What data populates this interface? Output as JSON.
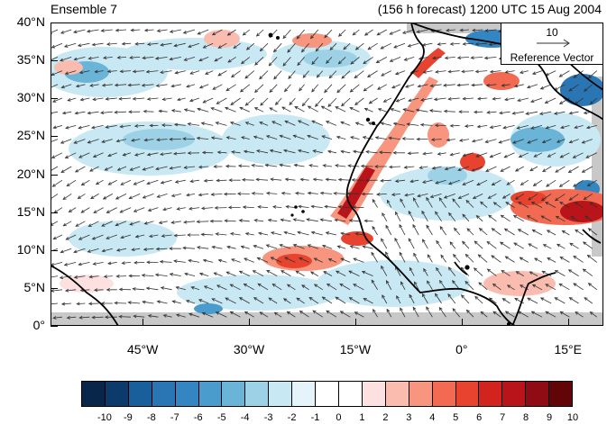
{
  "header": {
    "left_title": "Ensemble 7",
    "right_title": "(156 h forecast) 1200 UTC 15 Aug 2004"
  },
  "map": {
    "lat_labels": [
      "40°N",
      "35°N",
      "30°N",
      "25°N",
      "20°N",
      "15°N",
      "10°N",
      "5°N",
      "0°"
    ],
    "lat_values": [
      40,
      35,
      30,
      25,
      20,
      15,
      10,
      5,
      0
    ],
    "lon_labels": [
      "45°W",
      "30°W",
      "15°W",
      "0°",
      "15°E"
    ],
    "lon_values": [
      -45,
      -30,
      -15,
      0,
      15
    ],
    "lon_range": [
      -58,
      20
    ],
    "lat_range": [
      0,
      40
    ],
    "reference_vector": {
      "magnitude": "10",
      "label": "Reference Vector"
    }
  },
  "colorbar": {
    "labels": [
      "-10",
      "-9",
      "-8",
      "-7",
      "-6",
      "-5",
      "-4",
      "-3",
      "-2",
      "-1",
      "0",
      "1",
      "2",
      "3",
      "4",
      "5",
      "6",
      "7",
      "8",
      "9",
      "10"
    ],
    "colors": [
      "#08254a",
      "#0c3a6b",
      "#185f9c",
      "#2a76b4",
      "#3386c1",
      "#4a9ccc",
      "#6ab4d8",
      "#9dd2e6",
      "#c8e8f3",
      "#e4f4fa",
      "#ffffff",
      "#ffffff",
      "#fde0e0",
      "#fbbcb0",
      "#f7957e",
      "#f26a52",
      "#e8432f",
      "#d2231f",
      "#b8141a",
      "#8f0c14",
      "#620508"
    ],
    "scale_min": -10,
    "scale_max": 10
  },
  "colors": {
    "land_boundary": "#000000",
    "missing_data": "#c8c8c8",
    "arrow": "#333333"
  }
}
